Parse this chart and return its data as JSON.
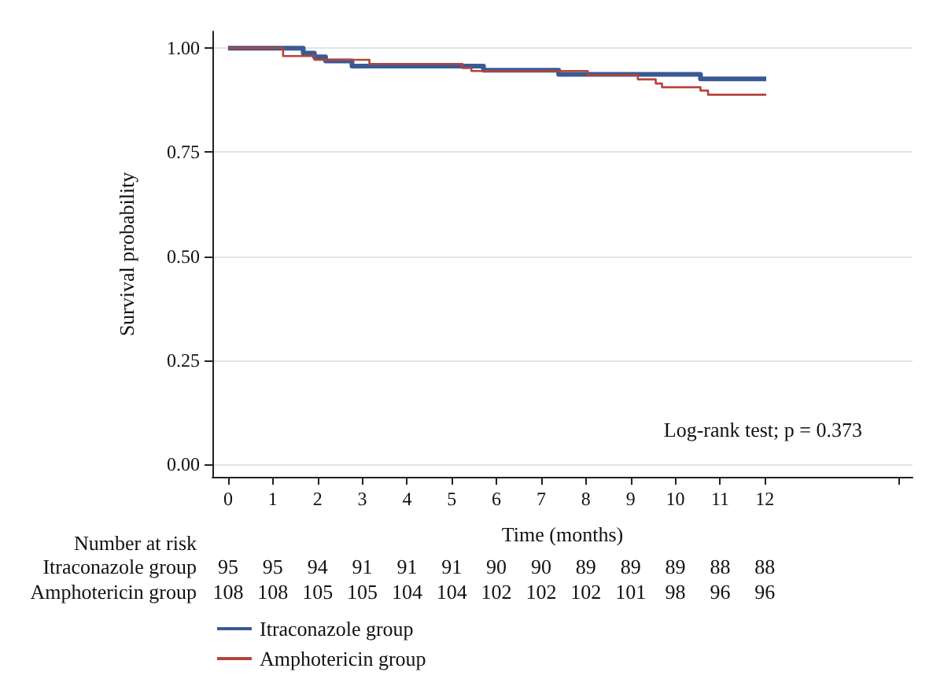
{
  "chart_data": {
    "type": "step",
    "xlabel": "Time (months)",
    "ylabel": "Survival probability",
    "xlim": [
      -0.35,
      15.3
    ],
    "xticks": [
      0,
      1,
      2,
      3,
      4,
      5,
      6,
      7,
      8,
      9,
      10,
      11,
      12,
      {
        "value": 15,
        "label": null
      }
    ],
    "ylim": [
      -0.03,
      1.04
    ],
    "yticks": [
      {
        "value": 0,
        "label": "0.00"
      },
      {
        "value": 0.25,
        "label": "0.25"
      },
      {
        "value": 0.5,
        "label": "0.50"
      },
      {
        "value": 0.75,
        "label": "0.75"
      },
      {
        "value": 1,
        "label": "1.00"
      }
    ],
    "grid": "y",
    "legend": "bottom left",
    "series": [
      {
        "name": "Itraconazole group",
        "color": "#3a5a94",
        "x": [
          0,
          1.68,
          1.93,
          2.18,
          2.77,
          5.71,
          7.39,
          10.56,
          12.03
        ],
        "values": [
          1,
          0.988,
          0.979,
          0.969,
          0.957,
          0.947,
          0.937,
          0.926,
          0.926
        ]
      },
      {
        "name": "Amphotericin group",
        "color": "#b5443a",
        "x": [
          0,
          1.23,
          1.93,
          3.16,
          5.24,
          5.44,
          8.04,
          9.16,
          9.56,
          9.7,
          10.56,
          10.73,
          12.03
        ],
        "values": [
          1,
          0.981,
          0.972,
          0.962,
          0.952,
          0.945,
          0.935,
          0.925,
          0.915,
          0.906,
          0.898,
          0.888,
          0.888
        ]
      }
    ],
    "annotations": [
      "Log-rank test; p = 0.373",
      "Number at risk",
      "Itraconazole group",
      "95",
      "95",
      "94",
      "91",
      "91",
      "91",
      "90",
      "90",
      "89",
      "89",
      "89",
      "88",
      "88",
      "Amphotericin group",
      "108",
      "108",
      "105",
      "105",
      "104",
      "104",
      "102",
      "102",
      "102",
      "101",
      "98",
      "96",
      "96"
    ]
  }
}
